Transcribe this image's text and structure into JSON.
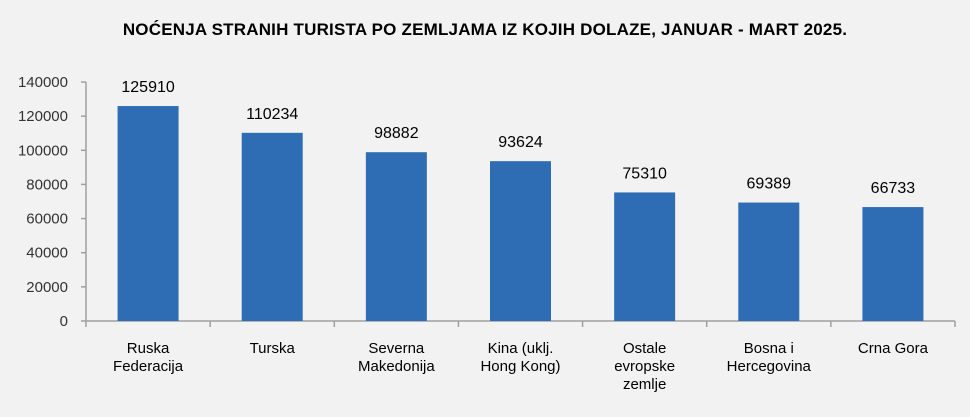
{
  "chart_data": {
    "type": "bar",
    "title": "NOĆENJA STRANIH TURISTA PO ZEMLJAMA IZ KOJIH DOLAZE, JANUAR - MART 2025.",
    "categories": [
      [
        "Ruska",
        "Federacija"
      ],
      [
        "Turska"
      ],
      [
        "Severna",
        "Makedonija"
      ],
      [
        "Kina (uklj.",
        "Hong Kong)"
      ],
      [
        "Ostale",
        "evropske",
        "zemlje"
      ],
      [
        "Bosna i",
        "Hercegovina"
      ],
      [
        "Crna Gora"
      ]
    ],
    "values": [
      125910,
      110234,
      98882,
      93624,
      75310,
      69389,
      66733
    ],
    "data_labels": [
      "125910",
      "110234",
      "98882",
      "93624",
      "75310",
      "69389",
      "66733"
    ],
    "ylim": [
      0,
      140000
    ],
    "yticks": [
      "0",
      "20000",
      "40000",
      "60000",
      "80000",
      "100000",
      "120000",
      "140000"
    ],
    "xlabel": "",
    "ylabel": "",
    "grid": false,
    "legend": "none",
    "bar_color": "#2e6db4",
    "axis_color": "#a0a0a0"
  }
}
